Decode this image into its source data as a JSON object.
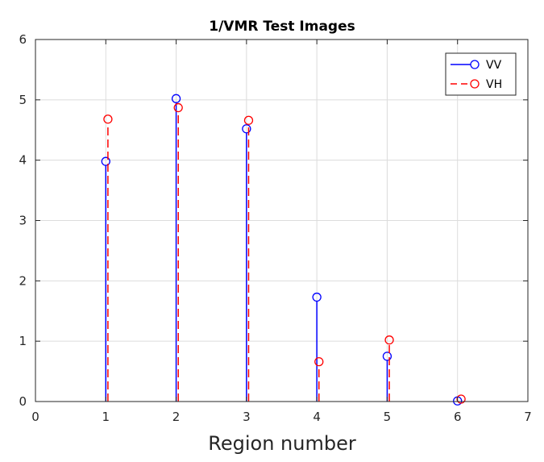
{
  "chart_data": {
    "type": "scatter",
    "subtype": "stem",
    "title": "1/VMR Test Images",
    "xlabel": "Region number",
    "ylabel": "",
    "xlim": [
      0,
      7
    ],
    "ylim": [
      0,
      6
    ],
    "xticks": [
      "0",
      "1",
      "2",
      "3",
      "4",
      "5",
      "6",
      "7"
    ],
    "yticks": [
      "0",
      "1",
      "2",
      "3",
      "4",
      "5",
      "6"
    ],
    "grid": true,
    "legend_position": "top-right",
    "series": [
      {
        "name": "VV",
        "color": "#0000ff",
        "line_style": "solid",
        "marker": "circle",
        "x": [
          1,
          2,
          3,
          4,
          5,
          6
        ],
        "values": [
          3.98,
          5.02,
          4.52,
          1.73,
          0.75,
          0.01
        ]
      },
      {
        "name": "VH",
        "color": "#ff0000",
        "line_style": "dashed",
        "marker": "circle",
        "x": [
          1.03,
          2.03,
          3.03,
          4.03,
          5.03,
          6.05
        ],
        "values": [
          4.68,
          4.87,
          4.66,
          0.66,
          1.02,
          0.04
        ]
      }
    ]
  }
}
